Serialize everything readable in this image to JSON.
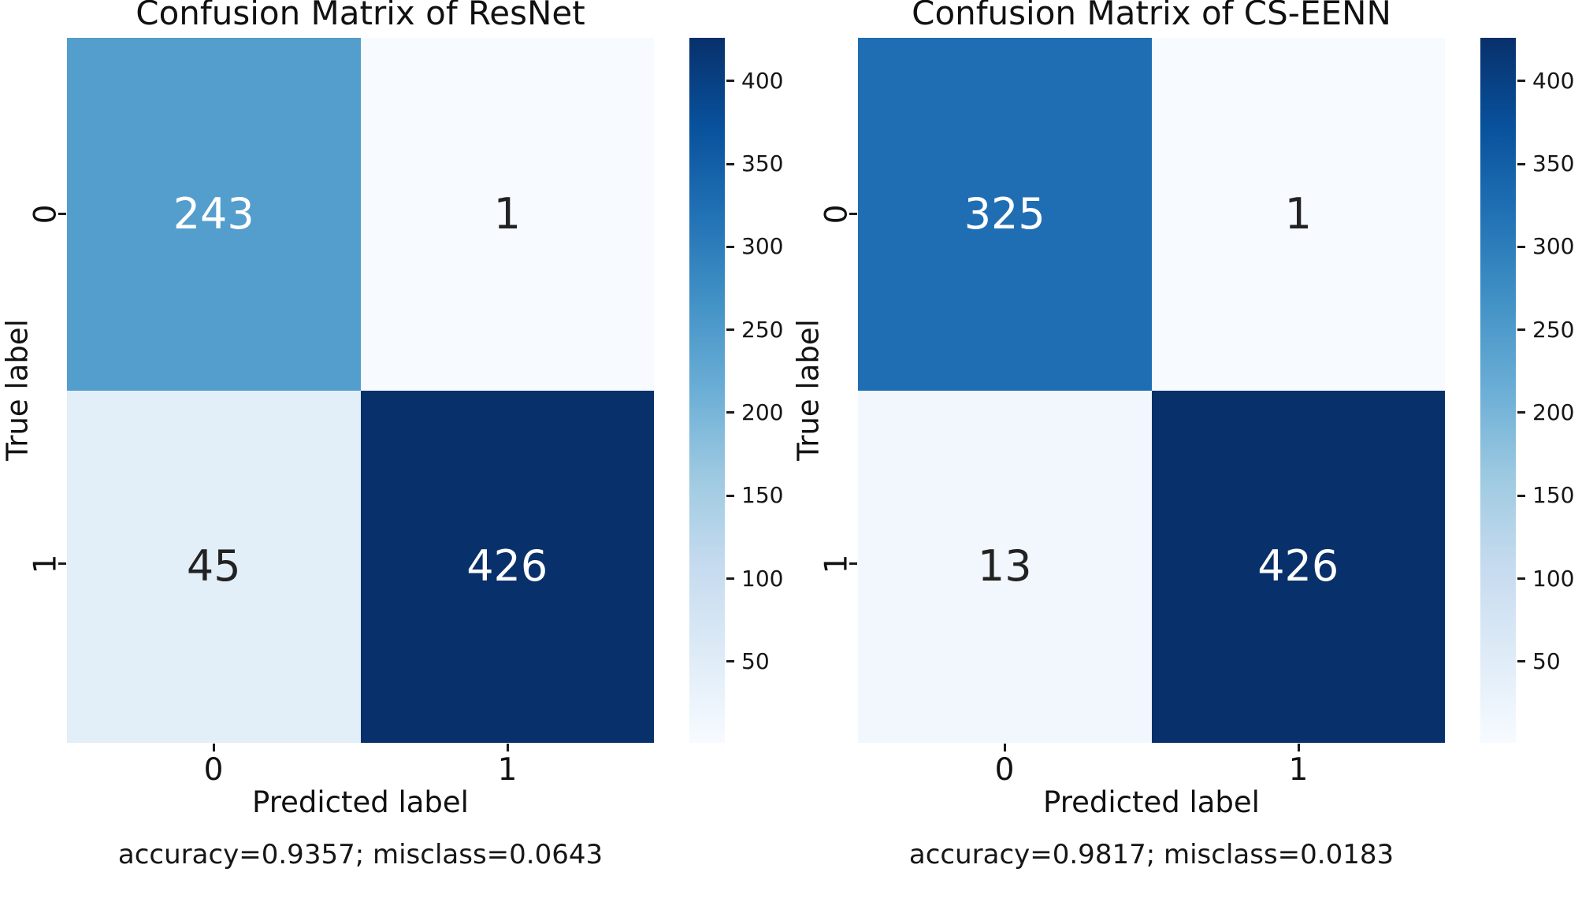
{
  "figure": {
    "background": "#ffffff"
  },
  "style": {
    "colormap_name": "Blues",
    "colormap_stops": [
      "#f7fbff",
      "#deebf7",
      "#c6dbef",
      "#9ecae1",
      "#6baed6",
      "#4292c6",
      "#2171b5",
      "#08519c",
      "#08306b"
    ],
    "dark_text": "#222222",
    "light_text": "#ffffff",
    "label_color": "#111111"
  },
  "chart_data": [
    {
      "type": "heatmap",
      "title": "Confusion Matrix of ResNet",
      "xlabel": "Predicted label",
      "ylabel": "True label",
      "x_tick_labels": [
        "0",
        "1"
      ],
      "y_tick_labels": [
        "0",
        "1"
      ],
      "matrix": [
        [
          243,
          1
        ],
        [
          45,
          426
        ]
      ],
      "annotation": "accuracy=0.9357; misclass=0.0643",
      "accuracy": "0.9357",
      "misclass": "0.0643",
      "legend_position": "right-colorbar",
      "grid": false,
      "colorbar": {
        "vmin": 1,
        "vmax": 426,
        "ticks": [
          50,
          100,
          150,
          200,
          250,
          300,
          350,
          400
        ]
      }
    },
    {
      "type": "heatmap",
      "title": "Confusion Matrix of CS-EENN",
      "xlabel": "Predicted label",
      "ylabel": "True label",
      "x_tick_labels": [
        "0",
        "1"
      ],
      "y_tick_labels": [
        "0",
        "1"
      ],
      "matrix": [
        [
          325,
          1
        ],
        [
          13,
          426
        ]
      ],
      "annotation": "accuracy=0.9817; misclass=0.0183",
      "accuracy": "0.9817",
      "misclass": "0.0183",
      "legend_position": "right-colorbar",
      "grid": false,
      "colorbar": {
        "vmin": 1,
        "vmax": 426,
        "ticks": [
          50,
          100,
          150,
          200,
          250,
          300,
          350,
          400
        ]
      }
    }
  ]
}
